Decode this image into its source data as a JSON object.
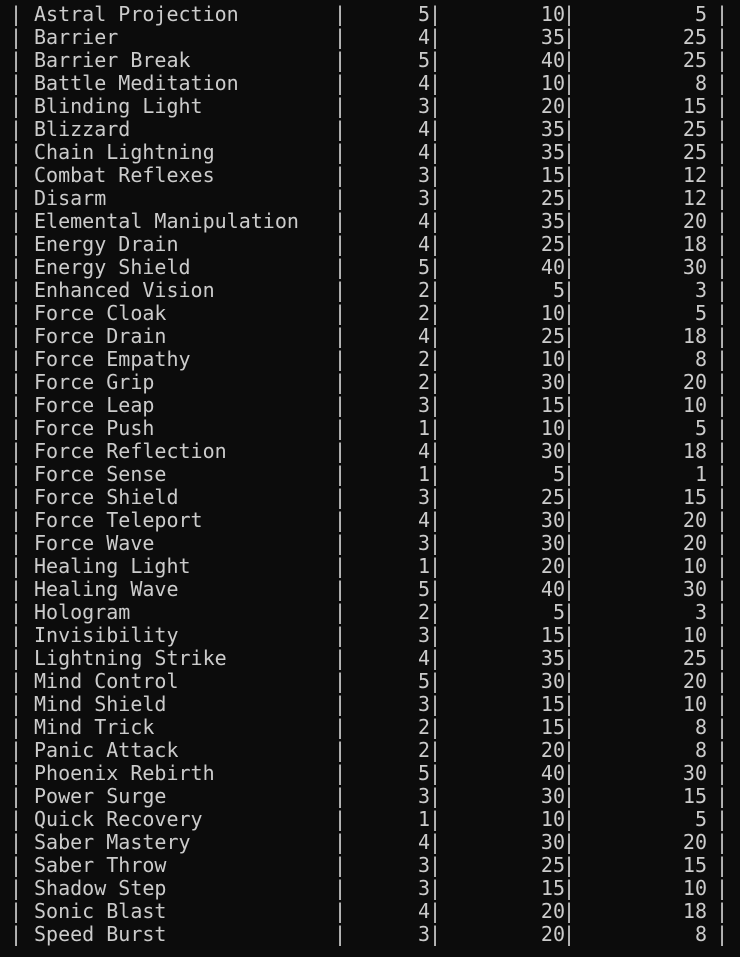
{
  "terminal": {
    "pipe": "|",
    "rows": [
      {
        "name": "Astral Projection",
        "level": "5",
        "cost": "10",
        "cooldown": "5"
      },
      {
        "name": "Barrier",
        "level": "4",
        "cost": "35",
        "cooldown": "25"
      },
      {
        "name": "Barrier Break",
        "level": "5",
        "cost": "40",
        "cooldown": "25"
      },
      {
        "name": "Battle Meditation",
        "level": "4",
        "cost": "10",
        "cooldown": "8"
      },
      {
        "name": "Blinding Light",
        "level": "3",
        "cost": "20",
        "cooldown": "15"
      },
      {
        "name": "Blizzard",
        "level": "4",
        "cost": "35",
        "cooldown": "25"
      },
      {
        "name": "Chain Lightning",
        "level": "4",
        "cost": "35",
        "cooldown": "25"
      },
      {
        "name": "Combat Reflexes",
        "level": "3",
        "cost": "15",
        "cooldown": "12"
      },
      {
        "name": "Disarm",
        "level": "3",
        "cost": "25",
        "cooldown": "12"
      },
      {
        "name": "Elemental Manipulation",
        "level": "4",
        "cost": "35",
        "cooldown": "20"
      },
      {
        "name": "Energy Drain",
        "level": "4",
        "cost": "25",
        "cooldown": "18"
      },
      {
        "name": "Energy Shield",
        "level": "5",
        "cost": "40",
        "cooldown": "30"
      },
      {
        "name": "Enhanced Vision",
        "level": "2",
        "cost": "5",
        "cooldown": "3"
      },
      {
        "name": "Force Cloak",
        "level": "2",
        "cost": "10",
        "cooldown": "5"
      },
      {
        "name": "Force Drain",
        "level": "4",
        "cost": "25",
        "cooldown": "18"
      },
      {
        "name": "Force Empathy",
        "level": "2",
        "cost": "10",
        "cooldown": "8"
      },
      {
        "name": "Force Grip",
        "level": "2",
        "cost": "30",
        "cooldown": "20"
      },
      {
        "name": "Force Leap",
        "level": "3",
        "cost": "15",
        "cooldown": "10"
      },
      {
        "name": "Force Push",
        "level": "1",
        "cost": "10",
        "cooldown": "5"
      },
      {
        "name": "Force Reflection",
        "level": "4",
        "cost": "30",
        "cooldown": "18"
      },
      {
        "name": "Force Sense",
        "level": "1",
        "cost": "5",
        "cooldown": "1"
      },
      {
        "name": "Force Shield",
        "level": "3",
        "cost": "25",
        "cooldown": "15"
      },
      {
        "name": "Force Teleport",
        "level": "4",
        "cost": "30",
        "cooldown": "20"
      },
      {
        "name": "Force Wave",
        "level": "3",
        "cost": "30",
        "cooldown": "20"
      },
      {
        "name": "Healing Light",
        "level": "1",
        "cost": "20",
        "cooldown": "10"
      },
      {
        "name": "Healing Wave",
        "level": "5",
        "cost": "40",
        "cooldown": "30"
      },
      {
        "name": "Hologram",
        "level": "2",
        "cost": "5",
        "cooldown": "3"
      },
      {
        "name": "Invisibility",
        "level": "3",
        "cost": "15",
        "cooldown": "10"
      },
      {
        "name": "Lightning Strike",
        "level": "4",
        "cost": "35",
        "cooldown": "25"
      },
      {
        "name": "Mind Control",
        "level": "5",
        "cost": "30",
        "cooldown": "20"
      },
      {
        "name": "Mind Shield",
        "level": "3",
        "cost": "15",
        "cooldown": "10"
      },
      {
        "name": "Mind Trick",
        "level": "2",
        "cost": "15",
        "cooldown": "8"
      },
      {
        "name": "Panic Attack",
        "level": "2",
        "cost": "20",
        "cooldown": "8"
      },
      {
        "name": "Phoenix Rebirth",
        "level": "5",
        "cost": "40",
        "cooldown": "30"
      },
      {
        "name": "Power Surge",
        "level": "3",
        "cost": "30",
        "cooldown": "15"
      },
      {
        "name": "Quick Recovery",
        "level": "1",
        "cost": "10",
        "cooldown": "5"
      },
      {
        "name": "Saber Mastery",
        "level": "4",
        "cost": "30",
        "cooldown": "20"
      },
      {
        "name": "Saber Throw",
        "level": "3",
        "cost": "25",
        "cooldown": "15"
      },
      {
        "name": "Shadow Step",
        "level": "3",
        "cost": "15",
        "cooldown": "10"
      },
      {
        "name": "Sonic Blast",
        "level": "4",
        "cost": "20",
        "cooldown": "18"
      },
      {
        "name": "Speed Burst",
        "level": "3",
        "cost": "20",
        "cooldown": "8"
      }
    ]
  },
  "colors": {
    "background": "#0c0c0c",
    "foreground": "#cccccc"
  }
}
